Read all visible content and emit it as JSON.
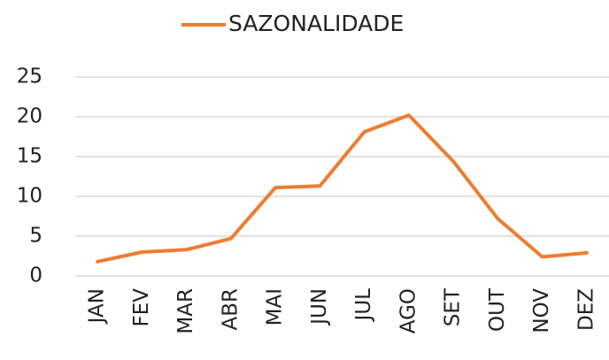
{
  "chart_data": {
    "type": "line",
    "categories": [
      "JAN",
      "FEV",
      "MAR",
      "ABR",
      "MAI",
      "JUN",
      "JUL",
      "AGO",
      "SET",
      "OUT",
      "NOV",
      "DEZ"
    ],
    "series": [
      {
        "name": "SAZONALIDADE",
        "color": "#ed7d31",
        "values": [
          1.8,
          3.0,
          3.3,
          4.7,
          11.1,
          11.3,
          18.1,
          20.2,
          14.4,
          7.2,
          2.4,
          2.9
        ]
      }
    ],
    "ylim": [
      0,
      25
    ],
    "yticks": [
      0,
      5,
      10,
      15,
      20,
      25
    ],
    "grid": true
  }
}
